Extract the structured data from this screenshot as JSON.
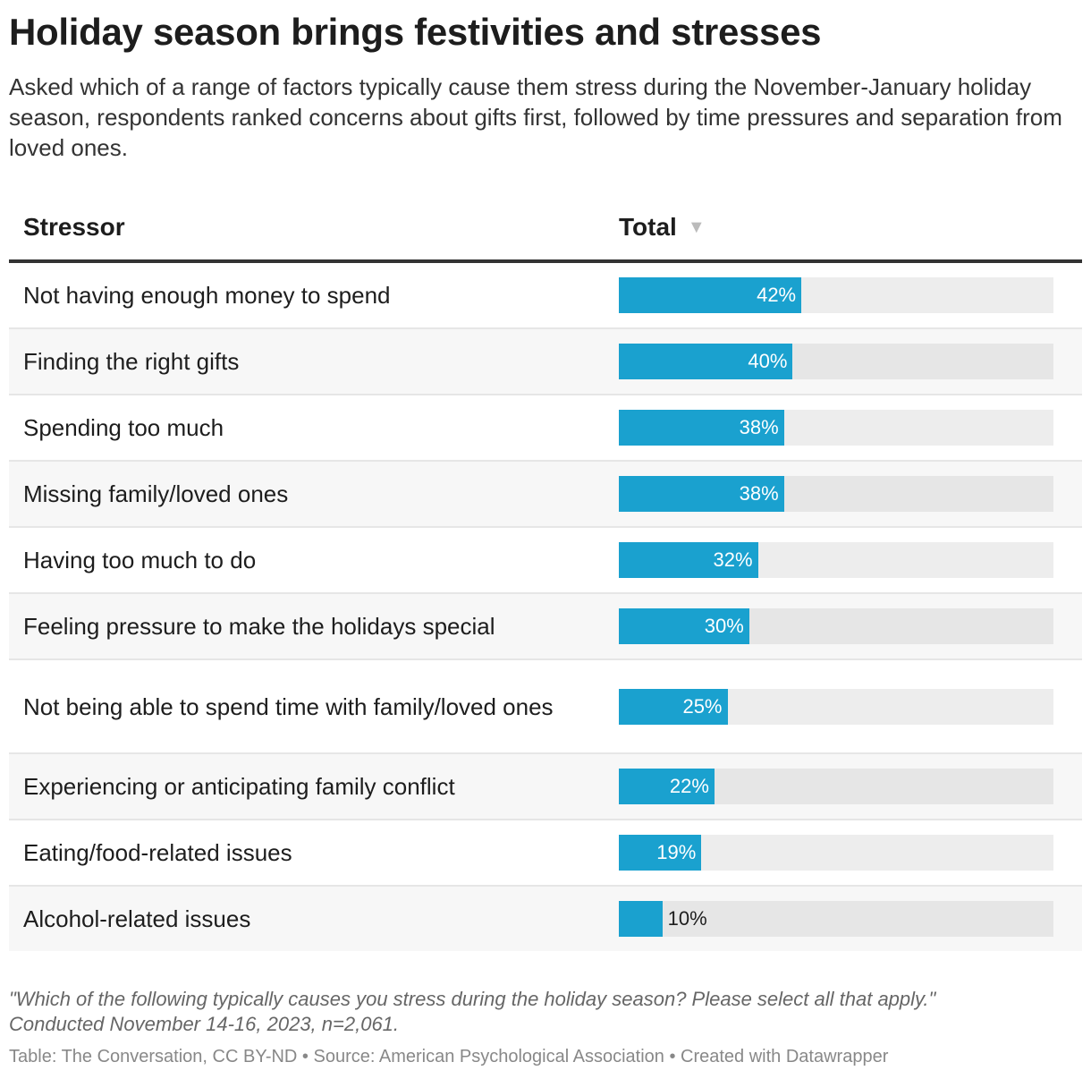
{
  "title": "Holiday season brings festivities and stresses",
  "subtitle": "Asked which of a range of factors typically cause them stress during the November-January holiday season, respondents ranked concerns about gifts first, followed by time pressures and separation from loved ones.",
  "notes_line1": "\"Which of the following typically causes you stress during the holiday season? Please select all that apply.\"",
  "notes_line2": "Conducted November 14-16, 2023, n=2,061.",
  "footer": "Table: The Conversation, CC BY-ND • Source: American Psychological Association • Created with Datawrapper",
  "colors": {
    "bar": "#1aa1cf",
    "track": "#ededed"
  },
  "chart_data": {
    "type": "table",
    "headers": [
      "Stressor",
      "Total"
    ],
    "sort_icon": "sort-descending-icon",
    "xlim": [
      0,
      100
    ],
    "rows": [
      {
        "label": "Not having enough money to spend",
        "value": 42,
        "text": "42%"
      },
      {
        "label": "Finding the right gifts",
        "value": 40,
        "text": "40%"
      },
      {
        "label": "Spending too much",
        "value": 38,
        "text": "38%"
      },
      {
        "label": "Missing family/loved ones",
        "value": 38,
        "text": "38%"
      },
      {
        "label": "Having too much to do",
        "value": 32,
        "text": "32%"
      },
      {
        "label": "Feeling pressure to make the holidays special",
        "value": 30,
        "text": "30%"
      },
      {
        "label": "Not being able to spend time with family/loved ones",
        "value": 25,
        "text": "25%"
      },
      {
        "label": "Experiencing or anticipating family conflict",
        "value": 22,
        "text": "22%"
      },
      {
        "label": "Eating/food-related issues",
        "value": 19,
        "text": "19%"
      },
      {
        "label": "Alcohol-related issues",
        "value": 10,
        "text": "10%"
      }
    ]
  }
}
